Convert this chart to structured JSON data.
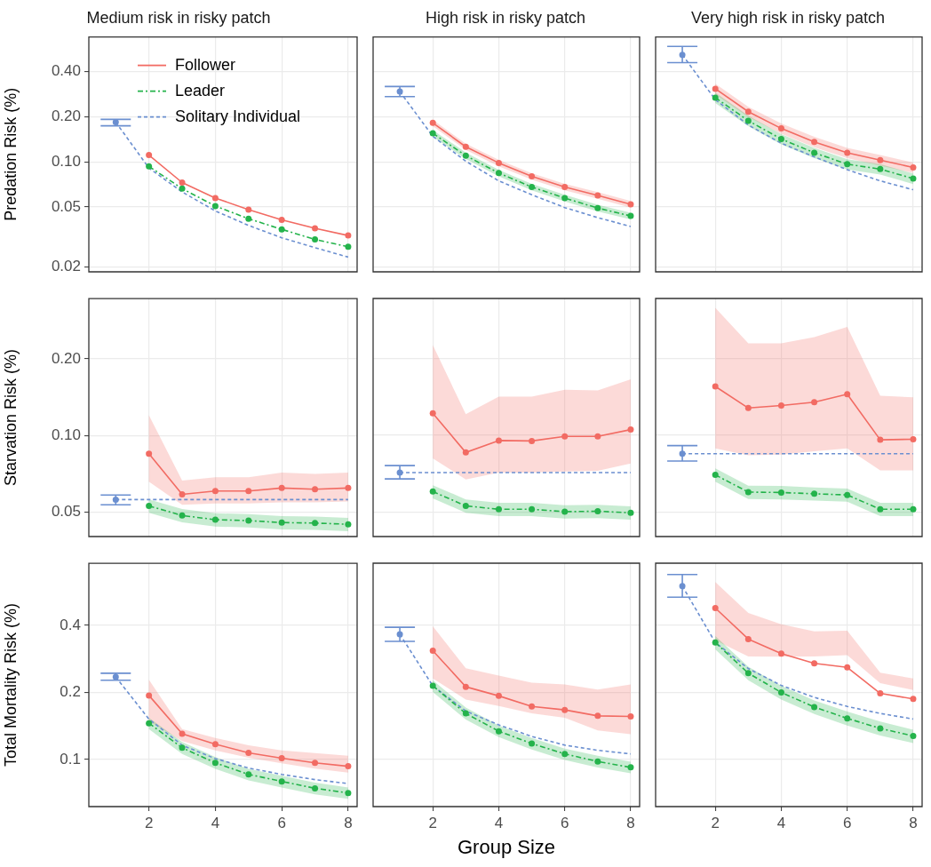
{
  "chart_data": [
    {
      "type": "line",
      "title": "Medium risk in risky patch",
      "ylabel": "Predation Risk (%)",
      "log": "y",
      "grid": true,
      "legend": "top left",
      "tick_labels": "y",
      "xlim": [
        0.19,
        8.27
      ],
      "xticks": [
        2,
        4,
        6,
        8
      ],
      "ylim": [
        0.0185,
        0.68
      ],
      "yticks": [
        0.02,
        0.05,
        {
          "value": 0.1,
          "label": "0.10"
        },
        {
          "value": 0.2,
          "label": "0.20"
        },
        {
          "value": 0.4,
          "label": "0.40"
        }
      ],
      "series": [
        {
          "name": "Follower",
          "color": "#f26b63",
          "marker": "circle",
          "line_style": "solid",
          "x": [
            2,
            3,
            4,
            5,
            6,
            7,
            8
          ],
          "values": [
            0.111,
            0.0728,
            0.0574,
            0.048,
            0.0411,
            0.0361,
            0.0323
          ]
        },
        {
          "name": "Leader",
          "color": "#24b34b",
          "marker": "circle",
          "line_style": "dashdot",
          "x": [
            2,
            3,
            4,
            5,
            6,
            7,
            8
          ],
          "values": [
            0.0934,
            0.0663,
            0.0508,
            0.0418,
            0.0355,
            0.0304,
            0.0272
          ]
        },
        {
          "name": "Solitary Individual",
          "color": "#6b8fd0",
          "marker": "none",
          "line_style": "dashed",
          "x": [
            1,
            2,
            3,
            4,
            5,
            6,
            7,
            8
          ],
          "values": [
            0.184,
            0.091,
            0.063,
            0.0471,
            0.0377,
            0.0312,
            0.0268,
            0.0232
          ]
        },
        {
          "type": "scatter",
          "color": "#6b8fd0",
          "marker": "circle",
          "x": [
            1
          ],
          "values": [
            0.184
          ],
          "errors": [
            [
              0.174,
              0.192
            ]
          ]
        }
      ]
    },
    {
      "type": "line",
      "title": "High risk in risky patch",
      "log": "y",
      "grid": true,
      "tick_labels": false,
      "xlim": [
        0.19,
        8.27
      ],
      "xticks": [
        2,
        4,
        6,
        8
      ],
      "ylim": [
        0.0185,
        0.68
      ],
      "yticks": [
        0.02,
        0.05,
        0.1,
        0.2,
        0.4
      ],
      "series": [
        {
          "color": "#f26b63",
          "marker": "circle",
          "line_style": "solid",
          "x": [
            2,
            3,
            4,
            5,
            6,
            7,
            8
          ],
          "values": [
            0.182,
            0.126,
            0.0984,
            0.08,
            0.068,
            0.0598,
            0.0522
          ],
          "lower": [
            0.173,
            0.12,
            0.0935,
            0.076,
            0.0646,
            0.0568,
            0.0496
          ],
          "upper": [
            0.191,
            0.132,
            0.103,
            0.084,
            0.0714,
            0.0628,
            0.0548
          ]
        },
        {
          "color": "#24b34b",
          "marker": "circle",
          "line_style": "dashdot",
          "x": [
            2,
            3,
            4,
            5,
            6,
            7,
            8
          ],
          "values": [
            0.155,
            0.11,
            0.0843,
            0.068,
            0.0574,
            0.0492,
            0.0436
          ],
          "lower": [
            0.147,
            0.1045,
            0.0801,
            0.0646,
            0.0545,
            0.0467,
            0.0414
          ],
          "upper": [
            0.163,
            0.1155,
            0.0885,
            0.0714,
            0.0603,
            0.0517,
            0.0458
          ]
        },
        {
          "color": "#6b8fd0",
          "marker": "none",
          "line_style": "dashed",
          "x": [
            1,
            2,
            3,
            4,
            5,
            6,
            7,
            8
          ],
          "values": [
            0.294,
            0.148,
            0.101,
            0.0747,
            0.0604,
            0.0496,
            0.0425,
            0.0371
          ]
        },
        {
          "type": "scatter",
          "color": "#6b8fd0",
          "marker": "circle",
          "x": [
            1
          ],
          "values": [
            0.294
          ],
          "errors": [
            [
              0.272,
              0.318
            ]
          ]
        }
      ]
    },
    {
      "type": "line",
      "title": "Very high risk in risky patch",
      "log": "y",
      "grid": true,
      "tick_labels": false,
      "xlim": [
        0.19,
        8.27
      ],
      "xticks": [
        2,
        4,
        6,
        8
      ],
      "ylim": [
        0.0185,
        0.68
      ],
      "yticks": [
        0.02,
        0.05,
        0.1,
        0.2,
        0.4
      ],
      "series": [
        {
          "color": "#f26b63",
          "marker": "circle",
          "line_style": "solid",
          "x": [
            2,
            3,
            4,
            5,
            6,
            7,
            8
          ],
          "values": [
            0.307,
            0.216,
            0.167,
            0.136,
            0.115,
            0.1026,
            0.0918
          ],
          "lower": [
            0.282,
            0.199,
            0.154,
            0.125,
            0.106,
            0.0944,
            0.0845
          ],
          "upper": [
            0.332,
            0.233,
            0.18,
            0.147,
            0.124,
            0.111,
            0.0991
          ]
        },
        {
          "color": "#24b34b",
          "marker": "circle",
          "line_style": "dashdot",
          "x": [
            2,
            3,
            4,
            5,
            6,
            7,
            8
          ],
          "values": [
            0.268,
            0.188,
            0.142,
            0.115,
            0.0966,
            0.0895,
            0.0774
          ],
          "lower": [
            0.247,
            0.173,
            0.131,
            0.106,
            0.0889,
            0.0823,
            0.0712
          ],
          "upper": [
            0.289,
            0.203,
            0.153,
            0.124,
            0.104,
            0.0967,
            0.0836
          ]
        },
        {
          "color": "#6b8fd0",
          "marker": "none",
          "line_style": "dashed",
          "x": [
            1,
            2,
            3,
            4,
            5,
            6,
            7,
            8
          ],
          "values": [
            0.517,
            0.26,
            0.176,
            0.133,
            0.108,
            0.0887,
            0.0747,
            0.0652
          ]
        },
        {
          "type": "scatter",
          "color": "#6b8fd0",
          "marker": "circle",
          "x": [
            1
          ],
          "values": [
            0.517
          ],
          "errors": [
            [
              0.459,
              0.588
            ]
          ]
        }
      ]
    },
    {
      "type": "line",
      "ylabel": "Starvation Risk (%)",
      "log": "y",
      "grid": true,
      "tick_labels": "y",
      "xlim": [
        0.19,
        8.27
      ],
      "xticks": [
        2,
        4,
        6,
        8
      ],
      "ylim": [
        0.04,
        0.345
      ],
      "yticks": [
        0.05,
        {
          "value": 0.1,
          "label": "0.10"
        },
        {
          "value": 0.2,
          "label": "0.20"
        }
      ],
      "series": [
        {
          "color": "#f26b63",
          "marker": "circle",
          "line_style": "solid",
          "x": [
            2,
            3,
            4,
            5,
            6,
            7,
            8
          ],
          "values": [
            0.0847,
            0.0586,
            0.0604,
            0.0604,
            0.0621,
            0.0614,
            0.0621
          ],
          "lower": [
            0.0657,
            0.0533,
            0.054,
            0.054,
            0.0545,
            0.0545,
            0.055
          ],
          "upper": [
            0.12,
            0.0664,
            0.0684,
            0.0684,
            0.0714,
            0.0705,
            0.0714
          ]
        },
        {
          "color": "#24b34b",
          "marker": "circle",
          "line_style": "dashdot",
          "x": [
            2,
            3,
            4,
            5,
            6,
            7,
            8
          ],
          "values": [
            0.0528,
            0.0484,
            0.0466,
            0.0462,
            0.0454,
            0.0452,
            0.0447
          ],
          "lower": [
            0.0496,
            0.0455,
            0.0438,
            0.0434,
            0.0427,
            0.0425,
            0.042
          ],
          "upper": [
            0.056,
            0.0513,
            0.0494,
            0.049,
            0.0481,
            0.0479,
            0.0474
          ]
        },
        {
          "color": "#6b8fd0",
          "marker": "none",
          "line_style": "dashed",
          "x": [
            1,
            2,
            3,
            4,
            5,
            6,
            7,
            8
          ],
          "values": [
            0.0559,
            0.0559,
            0.0559,
            0.0559,
            0.0559,
            0.0559,
            0.0559,
            0.0559
          ]
        },
        {
          "type": "scatter",
          "color": "#6b8fd0",
          "marker": "circle",
          "x": [
            1
          ],
          "values": [
            0.0559
          ],
          "errors": [
            [
              0.0533,
              0.0583
            ]
          ]
        }
      ]
    },
    {
      "type": "line",
      "log": "y",
      "grid": true,
      "tick_labels": false,
      "xlim": [
        0.19,
        8.27
      ],
      "xticks": [
        2,
        4,
        6,
        8
      ],
      "ylim": [
        0.04,
        0.345
      ],
      "yticks": [
        0.05,
        0.1,
        0.2
      ],
      "series": [
        {
          "color": "#f26b63",
          "marker": "circle",
          "line_style": "solid",
          "x": [
            2,
            3,
            4,
            5,
            6,
            7,
            8
          ],
          "values": [
            0.122,
            0.0856,
            0.0954,
            0.095,
            0.099,
            0.099,
            0.1053
          ],
          "lower": [
            0.0812,
            0.067,
            0.0714,
            0.0714,
            0.0721,
            0.0725,
            0.0775
          ],
          "upper": [
            0.226,
            0.121,
            0.142,
            0.142,
            0.151,
            0.15,
            0.166
          ]
        },
        {
          "color": "#24b34b",
          "marker": "circle",
          "line_style": "dashdot",
          "x": [
            2,
            3,
            4,
            5,
            6,
            7,
            8
          ],
          "values": [
            0.0601,
            0.0528,
            0.0512,
            0.0512,
            0.0501,
            0.0503,
            0.0496
          ],
          "lower": [
            0.0565,
            0.0496,
            0.0481,
            0.0481,
            0.0471,
            0.0473,
            0.0466
          ],
          "upper": [
            0.0637,
            0.056,
            0.0543,
            0.0543,
            0.0531,
            0.0533,
            0.0526
          ]
        },
        {
          "color": "#6b8fd0",
          "marker": "none",
          "line_style": "dashed",
          "x": [
            1,
            2,
            3,
            4,
            5,
            6,
            7,
            8
          ],
          "values": [
            0.0714,
            0.0714,
            0.0714,
            0.0714,
            0.0714,
            0.0714,
            0.0714,
            0.0714
          ]
        },
        {
          "type": "scatter",
          "color": "#6b8fd0",
          "marker": "circle",
          "x": [
            1
          ],
          "values": [
            0.0714
          ],
          "errors": [
            [
              0.0674,
              0.076
            ]
          ]
        }
      ]
    },
    {
      "type": "line",
      "log": "y",
      "grid": true,
      "tick_labels": false,
      "xlim": [
        0.19,
        8.27
      ],
      "xticks": [
        2,
        4,
        6,
        8
      ],
      "ylim": [
        0.04,
        0.345
      ],
      "yticks": [
        0.05,
        0.1,
        0.2
      ],
      "series": [
        {
          "color": "#f26b63",
          "marker": "circle",
          "line_style": "solid",
          "x": [
            2,
            3,
            4,
            5,
            6,
            7,
            8
          ],
          "values": [
            0.1556,
            0.128,
            0.131,
            0.135,
            0.145,
            0.096,
            0.0965
          ],
          "lower": [
            0.0888,
            0.0834,
            0.084,
            0.0865,
            0.0888,
            0.0728,
            0.0728
          ],
          "upper": [
            0.317,
            0.23,
            0.23,
            0.243,
            0.267,
            0.143,
            0.141
          ]
        },
        {
          "color": "#24b34b",
          "marker": "circle",
          "line_style": "dashdot",
          "x": [
            2,
            3,
            4,
            5,
            6,
            7,
            8
          ],
          "values": [
            0.0699,
            0.0598,
            0.0596,
            0.0589,
            0.0583,
            0.0512,
            0.0512
          ],
          "lower": [
            0.0657,
            0.0562,
            0.056,
            0.0554,
            0.0548,
            0.0481,
            0.0481
          ],
          "upper": [
            0.0741,
            0.0634,
            0.0632,
            0.0624,
            0.0618,
            0.0543,
            0.0543
          ]
        },
        {
          "color": "#6b8fd0",
          "marker": "none",
          "line_style": "dashed",
          "x": [
            1,
            2,
            3,
            4,
            5,
            6,
            7,
            8
          ],
          "values": [
            0.0847,
            0.0847,
            0.0847,
            0.0847,
            0.0847,
            0.0847,
            0.0847,
            0.0847
          ]
        },
        {
          "type": "scatter",
          "color": "#6b8fd0",
          "marker": "circle",
          "x": [
            1
          ],
          "values": [
            0.0847
          ],
          "errors": [
            [
              0.0792,
              0.0911
            ]
          ]
        }
      ]
    },
    {
      "type": "line",
      "ylabel": "Total Mortality Risk (%)",
      "log": "y",
      "grid": true,
      "xlim": [
        0.19,
        8.27
      ],
      "xticks": [
        2,
        4,
        6,
        8
      ],
      "ylim": [
        0.0615,
        0.76
      ],
      "yticks": [
        0.1,
        0.2,
        0.4
      ],
      "series": [
        {
          "color": "#f26b63",
          "marker": "circle",
          "line_style": "solid",
          "x": [
            2,
            3,
            4,
            5,
            6,
            7,
            8
          ],
          "values": [
            0.194,
            0.1307,
            0.1173,
            0.1072,
            0.1015,
            0.0967,
            0.0933
          ],
          "lower": [
            0.149,
            0.121,
            0.11,
            0.102,
            0.0962,
            0.0911,
            0.0874
          ],
          "upper": [
            0.228,
            0.137,
            0.125,
            0.116,
            0.11,
            0.107,
            0.104
          ]
        },
        {
          "color": "#24b34b",
          "marker": "circle",
          "line_style": "dashdot",
          "x": [
            2,
            3,
            4,
            5,
            6,
            7,
            8
          ],
          "values": [
            0.1456,
            0.113,
            0.0967,
            0.0858,
            0.0798,
            0.0743,
            0.0708
          ],
          "lower": [
            0.137,
            0.106,
            0.0909,
            0.0807,
            0.075,
            0.0698,
            0.0666
          ],
          "upper": [
            0.154,
            0.12,
            0.1025,
            0.0909,
            0.0846,
            0.0788,
            0.075
          ]
        },
        {
          "color": "#6b8fd0",
          "marker": "none",
          "line_style": "dashed",
          "x": [
            1,
            2,
            3,
            4,
            5,
            6,
            7,
            8
          ],
          "values": [
            0.235,
            0.152,
            0.116,
            0.101,
            0.0916,
            0.0858,
            0.0813,
            0.078
          ]
        },
        {
          "type": "scatter",
          "color": "#6b8fd0",
          "marker": "circle",
          "x": [
            1
          ],
          "values": [
            0.235
          ],
          "errors": [
            [
              0.227,
              0.244
            ]
          ]
        }
      ]
    },
    {
      "type": "line",
      "xlabel": "Group Size",
      "log": "y",
      "grid": true,
      "tick_labels": "x",
      "xlim": [
        0.19,
        8.27
      ],
      "xticks": [
        2,
        4,
        6,
        8
      ],
      "ylim": [
        0.0615,
        0.76
      ],
      "yticks": [
        0.1,
        0.2,
        0.4
      ],
      "series": [
        {
          "color": "#f26b63",
          "marker": "circle",
          "line_style": "solid",
          "x": [
            2,
            3,
            4,
            5,
            6,
            7,
            8
          ],
          "values": [
            0.308,
            0.212,
            0.193,
            0.173,
            0.167,
            0.157,
            0.156
          ],
          "lower": [
            0.231,
            0.186,
            0.174,
            0.161,
            0.154,
            0.135,
            0.13
          ],
          "upper": [
            0.396,
            0.257,
            0.238,
            0.221,
            0.217,
            0.206,
            0.217
          ]
        },
        {
          "color": "#24b34b",
          "marker": "circle",
          "line_style": "dashdot",
          "x": [
            2,
            3,
            4,
            5,
            6,
            7,
            8
          ],
          "values": [
            0.214,
            0.161,
            0.134,
            0.118,
            0.106,
            0.098,
            0.0922
          ],
          "lower": [
            0.201,
            0.151,
            0.126,
            0.111,
            0.0996,
            0.0921,
            0.0867
          ],
          "upper": [
            0.227,
            0.171,
            0.142,
            0.125,
            0.112,
            0.104,
            0.0977
          ]
        },
        {
          "color": "#6b8fd0",
          "marker": "none",
          "line_style": "dashed",
          "x": [
            1,
            2,
            3,
            4,
            5,
            6,
            7,
            8
          ],
          "values": [
            0.365,
            0.214,
            0.165,
            0.143,
            0.127,
            0.116,
            0.11,
            0.106
          ]
        },
        {
          "type": "scatter",
          "color": "#6b8fd0",
          "marker": "circle",
          "x": [
            1
          ],
          "values": [
            0.365
          ],
          "errors": [
            [
              0.339,
              0.392
            ]
          ]
        }
      ]
    },
    {
      "type": "line",
      "log": "y",
      "grid": true,
      "tick_labels": "x",
      "xlim": [
        0.19,
        8.27
      ],
      "xticks": [
        2,
        4,
        6,
        8
      ],
      "ylim": [
        0.0615,
        0.76
      ],
      "yticks": [
        0.1,
        0.2,
        0.4
      ],
      "series": [
        {
          "color": "#f26b63",
          "marker": "circle",
          "line_style": "solid",
          "x": [
            2,
            3,
            4,
            5,
            6,
            7,
            8
          ],
          "values": [
            0.478,
            0.347,
            0.299,
            0.27,
            0.259,
            0.198,
            0.187
          ],
          "lower": [
            0.343,
            0.29,
            0.289,
            0.29,
            0.294,
            0.22,
            0.205
          ],
          "upper": [
            0.626,
            0.455,
            0.404,
            0.376,
            0.378,
            0.245,
            0.231
          ]
        },
        {
          "color": "#24b34b",
          "marker": "circle",
          "line_style": "dashdot",
          "x": [
            2,
            3,
            4,
            5,
            6,
            7,
            8
          ],
          "values": [
            0.335,
            0.244,
            0.2,
            0.172,
            0.153,
            0.138,
            0.1275
          ],
          "lower": [
            0.312,
            0.227,
            0.186,
            0.16,
            0.142,
            0.128,
            0.1186
          ],
          "upper": [
            0.358,
            0.261,
            0.214,
            0.184,
            0.164,
            0.148,
            0.136
          ]
        },
        {
          "color": "#6b8fd0",
          "marker": "none",
          "line_style": "dashed",
          "x": [
            1,
            2,
            3,
            4,
            5,
            6,
            7,
            8
          ],
          "values": [
            0.6,
            0.335,
            0.256,
            0.215,
            0.19,
            0.173,
            0.161,
            0.152
          ]
        },
        {
          "type": "scatter",
          "color": "#6b8fd0",
          "marker": "circle",
          "x": [
            1
          ],
          "values": [
            0.6
          ],
          "errors": [
            [
              0.535,
              0.676
            ]
          ]
        }
      ]
    }
  ]
}
